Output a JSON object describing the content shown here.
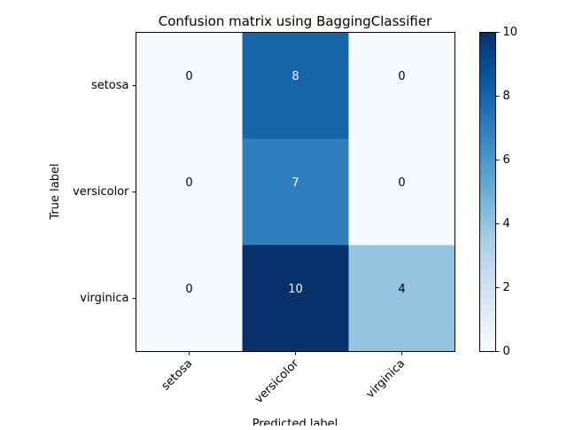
{
  "chart_data": {
    "type": "heatmap",
    "title": "Confusion matrix using BaggingClassifier",
    "xlabel": "Predicted label",
    "ylabel": "True label",
    "x_categories": [
      "setosa",
      "versicolor",
      "virginica"
    ],
    "y_categories": [
      "setosa",
      "versicolor",
      "virginica"
    ],
    "values": [
      [
        0,
        8,
        0
      ],
      [
        0,
        7,
        0
      ],
      [
        0,
        10,
        4
      ]
    ],
    "colormap": "Blues",
    "colorbar": {
      "min": 0,
      "max": 10,
      "ticks": [
        0,
        2,
        4,
        6,
        8,
        10
      ]
    },
    "text_colors": {
      "dark": "#000000",
      "light": "#ffffff"
    }
  }
}
